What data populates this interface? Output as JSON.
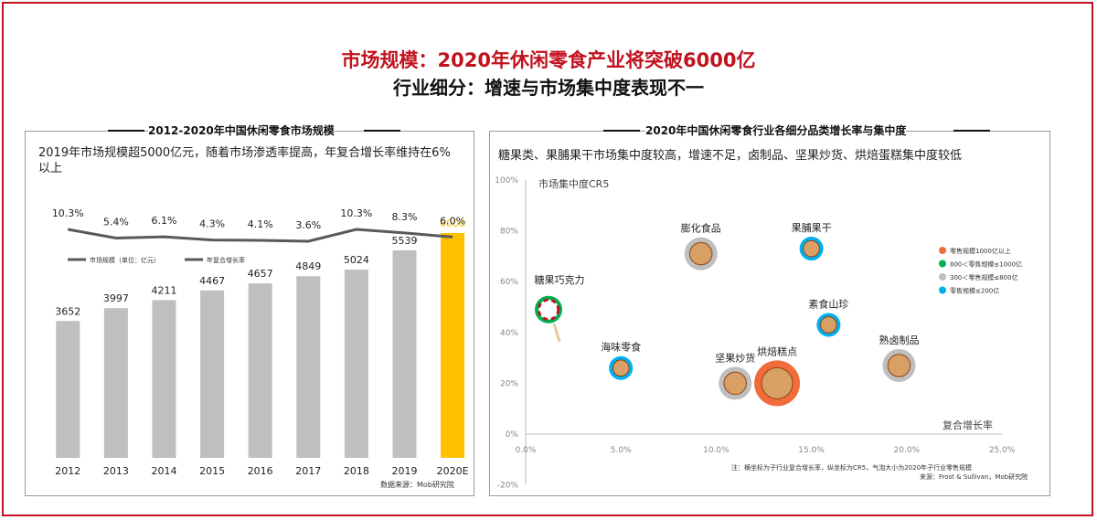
{
  "header": {
    "title": "市场规模：2020年休闲零食产业将突破6000亿",
    "subtitle": "行业细分：增速与市场集中度表现不一"
  },
  "left_panel": {
    "title": "2012-2020年中国休闲零食市场规模",
    "description": "2019年市场规模超5000亿元，随着市场渗透率提高，年复合增长率维持在6%以上",
    "source": "数据来源：Mob研究院"
  },
  "right_panel": {
    "title": "2020年中国休闲零食行业各细分品类增长率与集中度",
    "description": "糖果类、果脯果干市场集中度较高，增速不足，卤制品、坚果炒货、烘焙蛋糕集中度较低",
    "note_line1": "注：横坐标为子行业复合增长率，纵坐标为CR5，气泡大小为2020年子行业零售规模",
    "note_line2": "来源：Frost & Sullivan，Mob研究院"
  },
  "colors": {
    "bar": "#bfbfbf",
    "bar_highlight": "#ffc000",
    "line": "#595959",
    "accent": "#c1121f",
    "bubble_orange": "#f26b3a",
    "bubble_green": "#00b050",
    "bubble_gray": "#bfbfbf",
    "bubble_blue": "#00b0f0"
  },
  "chart_data": [
    {
      "type": "bar",
      "categories": [
        "2012",
        "2013",
        "2014",
        "2015",
        "2016",
        "2017",
        "2018",
        "2019",
        "2020E"
      ],
      "series": [
        {
          "name": "市场规模（单位：亿元）",
          "values": [
            3652,
            3997,
            4211,
            4467,
            4657,
            4849,
            5024,
            5539,
            6000
          ]
        },
        {
          "name": "年复合增长率",
          "values": [
            10.3,
            5.4,
            6.1,
            4.3,
            4.1,
            3.6,
            10.3,
            8.3,
            6.0
          ],
          "labels": [
            "10.3%",
            "5.4%",
            "6.1%",
            "4.3%",
            "4.1%",
            "3.6%",
            "10.3%",
            "8.3%",
            "6.0%"
          ]
        }
      ],
      "highlight_index": 8
    },
    {
      "type": "scatter",
      "xlabel": "复合增长率",
      "ylabel": "市场集中度CR5",
      "xlim": [
        0,
        25
      ],
      "ylim": [
        -20,
        100
      ],
      "xticks": [
        "0.0%",
        "5.0%",
        "10.0%",
        "15.0%",
        "20.0%",
        "25.0%"
      ],
      "yticks": [
        "-20%",
        "0%",
        "20%",
        "40%",
        "60%",
        "80%",
        "100%"
      ],
      "legend": [
        {
          "label": "零售规模1000亿以上",
          "color": "#f26b3a"
        },
        {
          "label": "800＜零售规模≤1000亿",
          "color": "#00b050"
        },
        {
          "label": "300＜零售规模≤800亿",
          "color": "#bfbfbf"
        },
        {
          "label": "零售规模≤200亿",
          "color": "#00b0f0"
        }
      ],
      "points": [
        {
          "name": "糖果巧克力",
          "x": 1.2,
          "y": 49,
          "tier": 1,
          "color": "#00b050",
          "icon": "lollipop-icon"
        },
        {
          "name": "膨化食品",
          "x": 9.2,
          "y": 71,
          "tier": 2,
          "color": "#bfbfbf",
          "icon": "puffed-snack-icon"
        },
        {
          "name": "果脯果干",
          "x": 15.0,
          "y": 73,
          "tier": 3,
          "color": "#00b0f0",
          "icon": "dried-fruit-icon"
        },
        {
          "name": "海味零食",
          "x": 5.0,
          "y": 26,
          "tier": 3,
          "color": "#00b0f0",
          "icon": "seafood-snack-icon"
        },
        {
          "name": "坚果炒货",
          "x": 11.0,
          "y": 20,
          "tier": 2,
          "color": "#bfbfbf",
          "icon": "nuts-icon"
        },
        {
          "name": "烘焙糕点",
          "x": 13.2,
          "y": 20,
          "tier": 0,
          "color": "#f26b3a",
          "icon": "cake-icon"
        },
        {
          "name": "素食山珍",
          "x": 15.9,
          "y": 43,
          "tier": 3,
          "color": "#00b0f0",
          "icon": "mushroom-snack-icon"
        },
        {
          "name": "熟卤制品",
          "x": 19.6,
          "y": 27,
          "tier": 2,
          "color": "#bfbfbf",
          "icon": "braised-meat-icon"
        }
      ]
    }
  ]
}
